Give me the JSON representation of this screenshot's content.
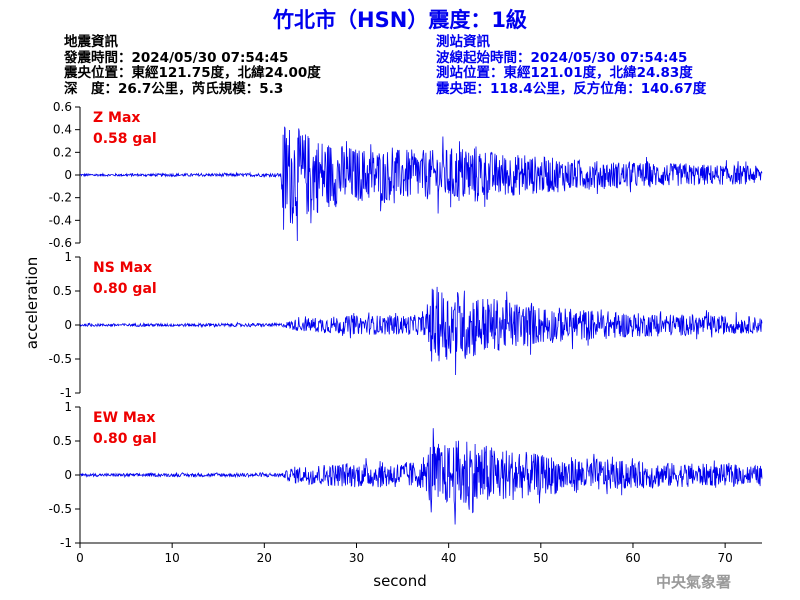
{
  "title": "竹北市（HSN）震度：1級",
  "quake_info": {
    "heading": "地震資訊",
    "time": "發震時間：2024/05/30 07:54:45",
    "epicenter": "震央位置：東經121.75度，北緯24.00度",
    "depth_magnitude": "深　度：26.7公里，芮氏規模：5.3"
  },
  "station_info": {
    "heading": "測站資訊",
    "wave_start": "波線起始時間：2024/05/30 07:54:45",
    "location": "測站位置：東經121.01度，北緯24.83度",
    "distance": "震央距：118.4公里，反方位角：140.67度"
  },
  "credit": "中央氣象署",
  "chart_data": {
    "type": "line",
    "xlabel": "second",
    "ylabel": "acceleration",
    "xlim": [
      0,
      74
    ],
    "x_ticks": [
      "0",
      "10",
      "20",
      "30",
      "40",
      "50",
      "60",
      "70"
    ],
    "grid": false,
    "line_color": "#0000ee",
    "annotation_color": "#ee0000",
    "panels": [
      {
        "component": "Z",
        "label": "Z Max",
        "max_value": "0.58 gal",
        "ylim": [
          -0.6,
          0.6
        ],
        "y_ticks": [
          "0.6",
          "0.4",
          "0.2",
          "0",
          "-0.2",
          "-0.4",
          "-0.6"
        ],
        "envelope": [
          [
            0,
            0.01
          ],
          [
            21.8,
            0.015
          ],
          [
            22,
            0.5
          ],
          [
            24,
            0.4
          ],
          [
            27,
            0.3
          ],
          [
            30,
            0.24
          ],
          [
            38,
            0.22
          ],
          [
            43,
            0.27
          ],
          [
            45,
            0.2
          ],
          [
            55,
            0.13
          ],
          [
            65,
            0.1
          ],
          [
            74,
            0.08
          ]
        ]
      },
      {
        "component": "NS",
        "label": "NS Max",
        "max_value": "0.80 gal",
        "ylim": [
          -1,
          1
        ],
        "y_ticks": [
          "1",
          "0.5",
          "0",
          "-0.5",
          "-1"
        ],
        "envelope": [
          [
            0,
            0.02
          ],
          [
            22,
            0.025
          ],
          [
            23,
            0.08
          ],
          [
            26,
            0.12
          ],
          [
            30,
            0.14
          ],
          [
            37.5,
            0.15
          ],
          [
            38,
            0.6
          ],
          [
            40,
            0.5
          ],
          [
            41.5,
            0.55
          ],
          [
            44,
            0.42
          ],
          [
            50,
            0.28
          ],
          [
            60,
            0.18
          ],
          [
            74,
            0.12
          ]
        ]
      },
      {
        "component": "EW",
        "label": "EW Max",
        "max_value": "0.80 gal",
        "ylim": [
          -1,
          1
        ],
        "y_ticks": [
          "1",
          "0.5",
          "0",
          "-0.5",
          "-1"
        ],
        "envelope": [
          [
            0,
            0.02
          ],
          [
            22,
            0.03
          ],
          [
            23,
            0.12
          ],
          [
            26,
            0.16
          ],
          [
            30,
            0.18
          ],
          [
            37.5,
            0.2
          ],
          [
            38,
            0.5
          ],
          [
            40,
            0.45
          ],
          [
            42,
            0.6
          ],
          [
            44,
            0.45
          ],
          [
            50,
            0.3
          ],
          [
            60,
            0.2
          ],
          [
            74,
            0.14
          ]
        ]
      }
    ]
  }
}
